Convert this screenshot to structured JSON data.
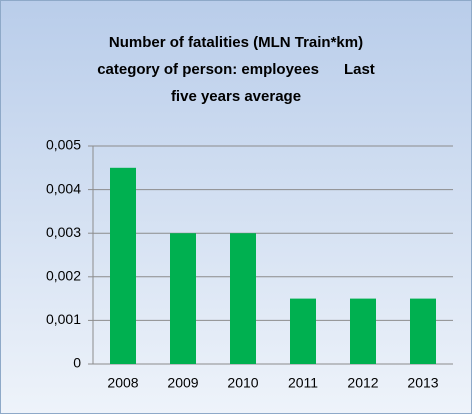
{
  "chart_data": {
    "type": "bar",
    "title": [
      "Number of fatalities (MLN Train*km)",
      "category of person: employees      Last",
      "five years average"
    ],
    "categories": [
      "2008",
      "2009",
      "2010",
      "2011",
      "2012",
      "2013"
    ],
    "values": [
      0.0045,
      0.003,
      0.003,
      0.0015,
      0.0015,
      0.0015
    ],
    "color": "#00b050",
    "ylim": [
      0,
      0.005
    ],
    "yticks": [
      0,
      {
        "value": 0.001,
        "label": "0,001"
      },
      {
        "value": 0.002,
        "label": "0,002"
      },
      {
        "value": 0.003,
        "label": "0,003"
      },
      {
        "value": 0.004,
        "label": "0,004"
      },
      {
        "value": 0.005,
        "label": "0,005"
      }
    ],
    "grid": true
  }
}
